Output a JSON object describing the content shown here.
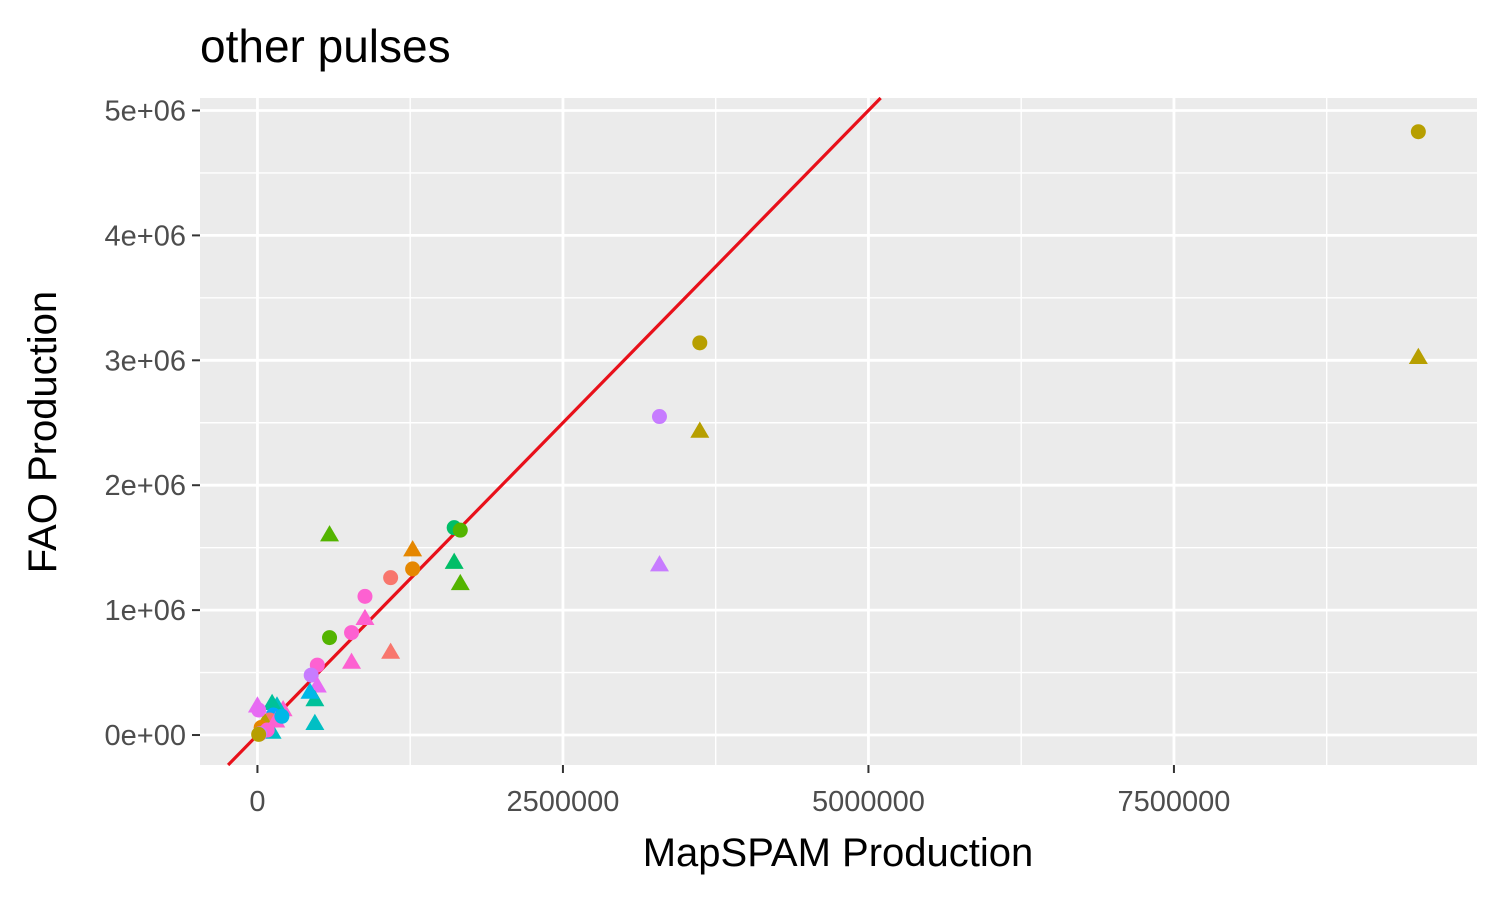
{
  "chart_data": {
    "type": "scatter",
    "title": "other pulses",
    "xlabel": "MapSPAM Production",
    "ylabel": "FAO Production",
    "xlim": [
      -470000,
      9980000
    ],
    "ylim": [
      -240000,
      5100000
    ],
    "x_ticks": [
      {
        "value": 0,
        "label": "0"
      },
      {
        "value": 2500000,
        "label": "2500000"
      },
      {
        "value": 5000000,
        "label": "5000000"
      },
      {
        "value": 7500000,
        "label": "7500000"
      }
    ],
    "x_minor_ticks": [
      1250000,
      3750000,
      6250000,
      8750000
    ],
    "y_ticks": [
      {
        "value": 0,
        "label": "0e+00"
      },
      {
        "value": 1000000,
        "label": "1e+06"
      },
      {
        "value": 2000000,
        "label": "2e+06"
      },
      {
        "value": 3000000,
        "label": "3e+06"
      },
      {
        "value": 4000000,
        "label": "4e+06"
      },
      {
        "value": 5000000,
        "label": "5e+06"
      }
    ],
    "y_minor_ticks": [
      500000,
      1500000,
      2500000,
      3500000,
      4500000
    ],
    "grid": true,
    "reference_line": {
      "slope": 1,
      "intercept": 0,
      "color": "#e8101a"
    },
    "colors": {
      "panel": "#ebebeb",
      "grid": "#ffffff",
      "text": "#4d4d4d",
      "tick": "#333333"
    },
    "points": [
      {
        "x": 9500000,
        "y": 4830000,
        "shape": "circle",
        "color": "#b79f00"
      },
      {
        "x": 9500000,
        "y": 3020000,
        "shape": "triangle",
        "color": "#b79f00"
      },
      {
        "x": 3620000,
        "y": 3140000,
        "shape": "circle",
        "color": "#b79f00"
      },
      {
        "x": 3620000,
        "y": 2430000,
        "shape": "triangle",
        "color": "#b79f00"
      },
      {
        "x": 3290000,
        "y": 2550000,
        "shape": "circle",
        "color": "#c77cff"
      },
      {
        "x": 3290000,
        "y": 1360000,
        "shape": "triangle",
        "color": "#c77cff"
      },
      {
        "x": 1610000,
        "y": 1660000,
        "shape": "circle",
        "color": "#00be67"
      },
      {
        "x": 1660000,
        "y": 1640000,
        "shape": "circle",
        "color": "#53b400"
      },
      {
        "x": 1610000,
        "y": 1380000,
        "shape": "triangle",
        "color": "#00be67"
      },
      {
        "x": 1660000,
        "y": 1210000,
        "shape": "triangle",
        "color": "#53b400"
      },
      {
        "x": 590000,
        "y": 1600000,
        "shape": "triangle",
        "color": "#53b400"
      },
      {
        "x": 590000,
        "y": 780000,
        "shape": "circle",
        "color": "#53b400"
      },
      {
        "x": 1270000,
        "y": 1480000,
        "shape": "triangle",
        "color": "#e58700"
      },
      {
        "x": 1270000,
        "y": 1330000,
        "shape": "circle",
        "color": "#e58700"
      },
      {
        "x": 1090000,
        "y": 1260000,
        "shape": "circle",
        "color": "#f8766d"
      },
      {
        "x": 1090000,
        "y": 660000,
        "shape": "triangle",
        "color": "#f8766d"
      },
      {
        "x": 880000,
        "y": 1110000,
        "shape": "circle",
        "color": "#fd61d1"
      },
      {
        "x": 880000,
        "y": 930000,
        "shape": "triangle",
        "color": "#fd61d1"
      },
      {
        "x": 770000,
        "y": 820000,
        "shape": "circle",
        "color": "#fd61d1"
      },
      {
        "x": 770000,
        "y": 580000,
        "shape": "triangle",
        "color": "#fd61d1"
      },
      {
        "x": 490000,
        "y": 560000,
        "shape": "circle",
        "color": "#fd61d1"
      },
      {
        "x": 440000,
        "y": 480000,
        "shape": "circle",
        "color": "#c77cff"
      },
      {
        "x": 490000,
        "y": 390000,
        "shape": "triangle",
        "color": "#e76bf3"
      },
      {
        "x": 470000,
        "y": 280000,
        "shape": "triangle",
        "color": "#00c19a"
      },
      {
        "x": 470000,
        "y": 90000,
        "shape": "triangle",
        "color": "#00bfc4"
      },
      {
        "x": 430000,
        "y": 340000,
        "shape": "triangle",
        "color": "#00b8e7"
      },
      {
        "x": 210000,
        "y": 200000,
        "shape": "triangle",
        "color": "#fd61d1"
      },
      {
        "x": 160000,
        "y": 230000,
        "shape": "triangle",
        "color": "#00bfc4"
      },
      {
        "x": 120000,
        "y": 250000,
        "shape": "triangle",
        "color": "#00c19a"
      },
      {
        "x": 130000,
        "y": 160000,
        "shape": "circle",
        "color": "#00a9ff"
      },
      {
        "x": 100000,
        "y": 120000,
        "shape": "circle",
        "color": "#f8766d"
      },
      {
        "x": 60000,
        "y": 100000,
        "shape": "triangle",
        "color": "#b79f00"
      },
      {
        "x": 30000,
        "y": 60000,
        "shape": "circle",
        "color": "#e58700"
      },
      {
        "x": 0,
        "y": 230000,
        "shape": "triangle",
        "color": "#e76bf3"
      },
      {
        "x": 10000,
        "y": 200000,
        "shape": "circle",
        "color": "#e76bf3"
      },
      {
        "x": 120000,
        "y": 20000,
        "shape": "triangle",
        "color": "#00bfc4"
      },
      {
        "x": 80000,
        "y": 40000,
        "shape": "circle",
        "color": "#fd61d1"
      },
      {
        "x": 20000,
        "y": 10000,
        "shape": "circle",
        "color": "#c77cff"
      },
      {
        "x": 10000,
        "y": 5000,
        "shape": "circle",
        "color": "#b79f00"
      },
      {
        "x": 150000,
        "y": 110000,
        "shape": "triangle",
        "color": "#fd61d1"
      },
      {
        "x": 200000,
        "y": 150000,
        "shape": "circle",
        "color": "#00b8e7"
      }
    ]
  }
}
